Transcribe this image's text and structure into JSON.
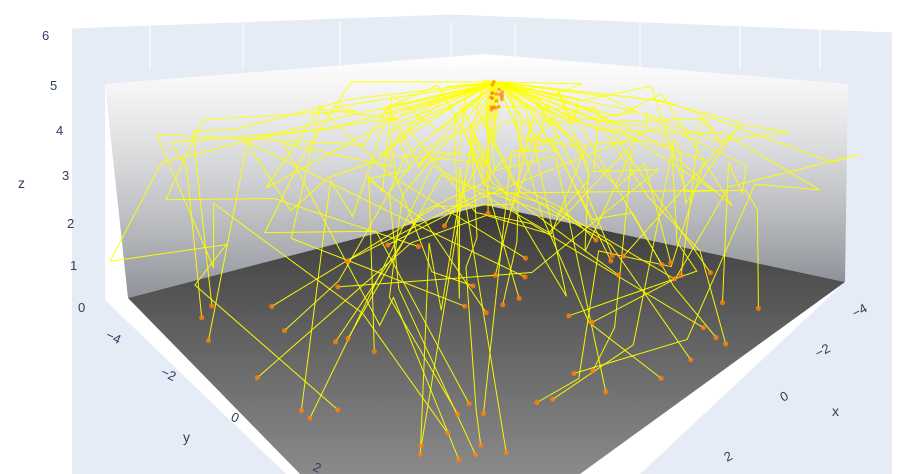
{
  "chart_data": {
    "type": "scatter3d",
    "xlabel": "x",
    "ylabel": "y",
    "zlabel": "z",
    "xlim": [
      -5,
      5
    ],
    "ylim": [
      -5,
      5
    ],
    "zlim": [
      0,
      6
    ],
    "x_ticks": [
      "−4",
      "−2",
      "0",
      "2"
    ],
    "y_ticks": [
      "−4",
      "−2",
      "0",
      "2"
    ],
    "z_ticks": [
      "0",
      "1",
      "2",
      "3",
      "4",
      "5",
      "6"
    ],
    "grid": true,
    "background_color": "#e5ecf6",
    "floor_color": "#555555",
    "line_color": "#ffff00",
    "marker_color": "#ff7f0e",
    "apex": {
      "x": 0,
      "y": 0,
      "z": 5
    },
    "marker_z": 0,
    "path_count": 60
  }
}
